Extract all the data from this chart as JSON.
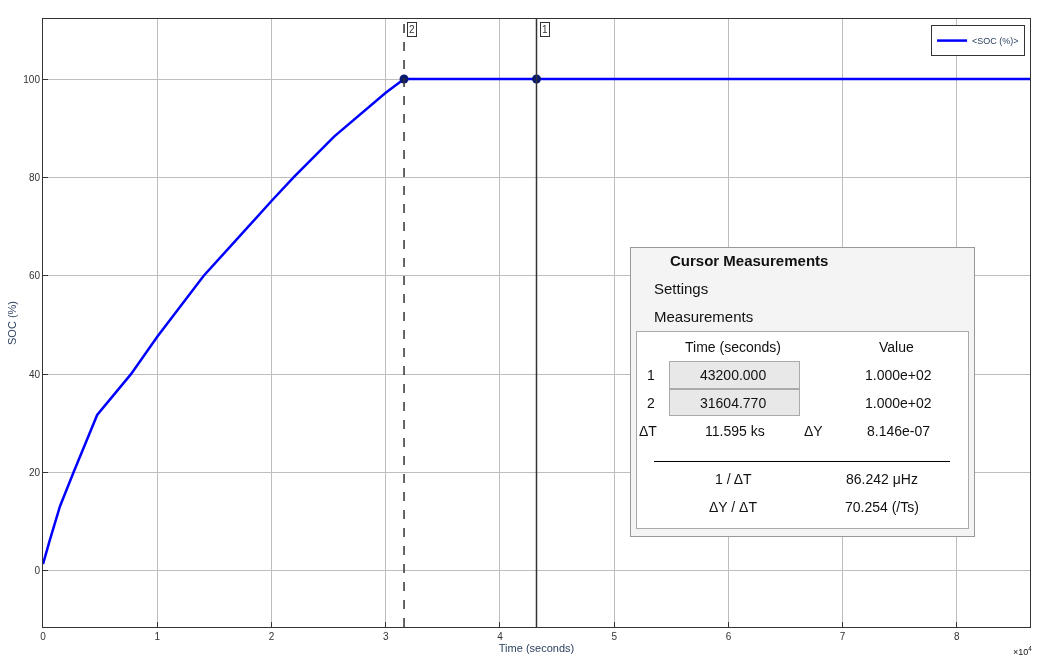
{
  "chart_data": {
    "type": "line",
    "xlabel": "Time (seconds)",
    "ylabel": "SOC (%)",
    "xlim": [
      0,
      8.64
    ],
    "ylim": [
      -11.4,
      112.2
    ],
    "xticks": [
      0,
      1,
      2,
      3,
      4,
      5,
      6,
      7,
      8
    ],
    "yticks": [
      0,
      20,
      40,
      60,
      80,
      100
    ],
    "grid": true,
    "legend": "top right",
    "marker": "none",
    "line_style": "solid",
    "series": [
      {
        "name": "<SOC (%)>",
        "color": "#0000ff",
        "x": [
          0,
          0.059,
          0.148,
          0.2667,
          0.474,
          0.77,
          1.0,
          1.407,
          2.0,
          2.193,
          2.548,
          3.0,
          3.1605,
          4.32,
          6.0,
          8.64
        ],
        "values": [
          1.4,
          6.2,
          13.1,
          20,
          31.7,
          40,
          47.6,
          60,
          75.2,
          80,
          88.3,
          97.2,
          100,
          100,
          100,
          100
        ]
      },
      {
        "type": "scatter",
        "marker": "circle",
        "color": "#0a1a6e",
        "x": [
          3.160477,
          4.32
        ],
        "values": [
          100,
          100
        ]
      }
    ],
    "ref_lines": [
      {
        "axis": "x",
        "value": 4.32,
        "color": "#333333",
        "line_style": "solid"
      },
      {
        "axis": "x",
        "value": 3.160477,
        "color": "#333333",
        "line_style": "dashed"
      }
    ],
    "annotations": [
      "Cursor Measurements",
      "Settings",
      "Measurements",
      "Time (seconds)",
      "Value",
      "1",
      "43200.000",
      "1.000e+02",
      "2",
      "31604.770",
      "1.000e+02",
      "ΔT",
      "11.595 ks",
      "ΔY",
      "8.146e-07",
      "1 / ΔT",
      "86.242 μHz",
      "ΔY / ΔT",
      "70.254 (/Ts)",
      "×10$^{4}$",
      {
        "text": "1",
        "x": 4.32,
        "y": 112.2
      },
      {
        "text": "2",
        "x": 3.160477,
        "y": 112.2
      }
    ]
  }
}
